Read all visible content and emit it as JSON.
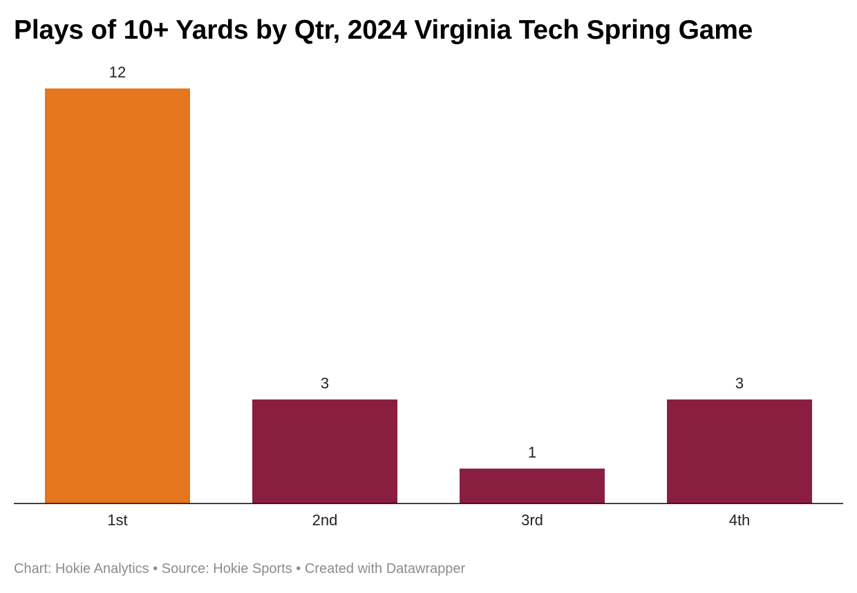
{
  "chart_data": {
    "type": "bar",
    "title": "Plays of 10+ Yards by Qtr, 2024 Virginia Tech Spring Game",
    "categories": [
      "1st",
      "2nd",
      "3rd",
      "4th"
    ],
    "values": [
      12,
      3,
      1,
      3
    ],
    "ylim": [
      0,
      12
    ],
    "grid": false,
    "colors": [
      "#e5761e",
      "#8a1e41",
      "#8a1e41",
      "#8a1e41"
    ],
    "axis_color": "#000000"
  },
  "footer": {
    "chart_credit": "Chart: Hokie Analytics",
    "separator": " • ",
    "source": "Source: Hokie Sports",
    "created_with": "Created with Datawrapper"
  }
}
